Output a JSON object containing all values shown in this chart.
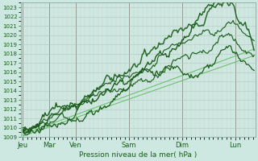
{
  "bg_color": "#cce8e0",
  "grid_major_color": "#b8ccc8",
  "grid_minor_color": "#d8c8c8",
  "line_color_dark": "#1a5c1a",
  "line_color_light": "#4aaa4a",
  "line_color_thin": "#66bb66",
  "xlabel": "Pression niveau de la mer( hPa )",
  "ylim": [
    1009,
    1023.5
  ],
  "yticks": [
    1009,
    1010,
    1011,
    1012,
    1013,
    1014,
    1015,
    1016,
    1017,
    1018,
    1019,
    1020,
    1021,
    1022,
    1023
  ],
  "x_day_labels": [
    "Jeu",
    "Mar",
    "Ven",
    "Sam",
    "Dim",
    "Lun"
  ],
  "x_day_positions": [
    0,
    24,
    48,
    96,
    144,
    192
  ],
  "xlim": [
    -2,
    210
  ],
  "num_points": 210
}
